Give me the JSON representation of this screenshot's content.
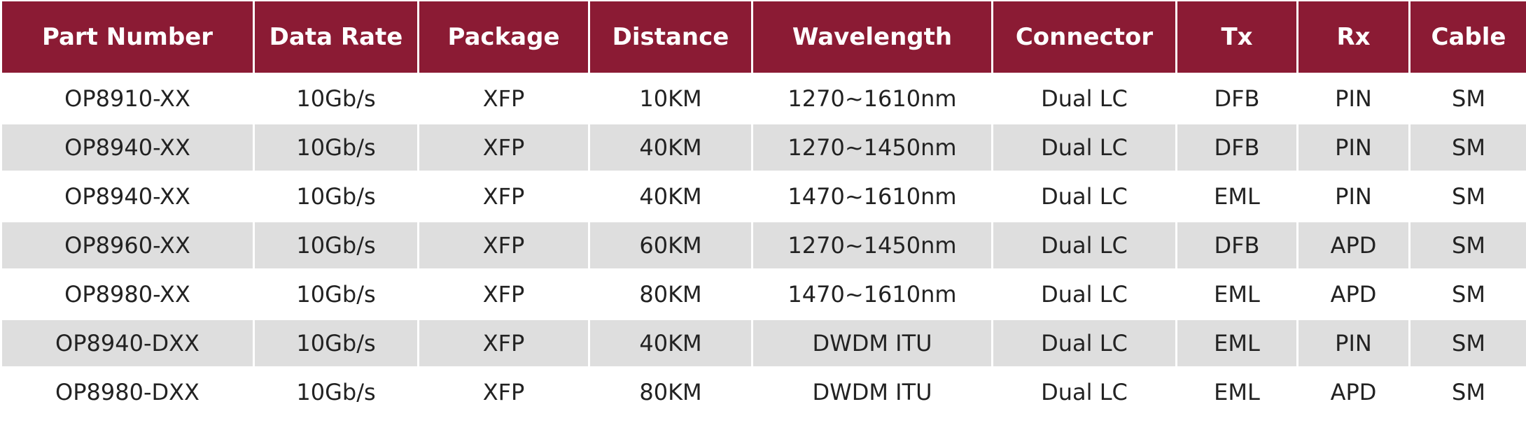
{
  "table": {
    "headers": [
      "Part Number",
      "Data Rate",
      "Package",
      "Distance",
      "Wavelength",
      "Connector",
      "Tx",
      "Rx",
      "Cable"
    ],
    "rows": [
      [
        "OP8910-XX",
        "10Gb/s",
        "XFP",
        "10KM",
        "1270~1610nm",
        "Dual LC",
        "DFB",
        "PIN",
        "SM"
      ],
      [
        "OP8940-XX",
        "10Gb/s",
        "XFP",
        "40KM",
        "1270~1450nm",
        "Dual LC",
        "DFB",
        "PIN",
        "SM"
      ],
      [
        "OP8940-XX",
        "10Gb/s",
        "XFP",
        "40KM",
        "1470~1610nm",
        "Dual LC",
        "EML",
        "PIN",
        "SM"
      ],
      [
        "OP8960-XX",
        "10Gb/s",
        "XFP",
        "60KM",
        "1270~1450nm",
        "Dual LC",
        "DFB",
        "APD",
        "SM"
      ],
      [
        "OP8980-XX",
        "10Gb/s",
        "XFP",
        "80KM",
        "1470~1610nm",
        "Dual LC",
        "EML",
        "APD",
        "SM"
      ],
      [
        "OP8940-DXX",
        "10Gb/s",
        "XFP",
        "40KM",
        "DWDM ITU",
        "Dual LC",
        "EML",
        "PIN",
        "SM"
      ],
      [
        "OP8980-DXX",
        "10Gb/s",
        "XFP",
        "80KM",
        "DWDM ITU",
        "Dual LC",
        "EML",
        "APD",
        "SM"
      ]
    ]
  }
}
